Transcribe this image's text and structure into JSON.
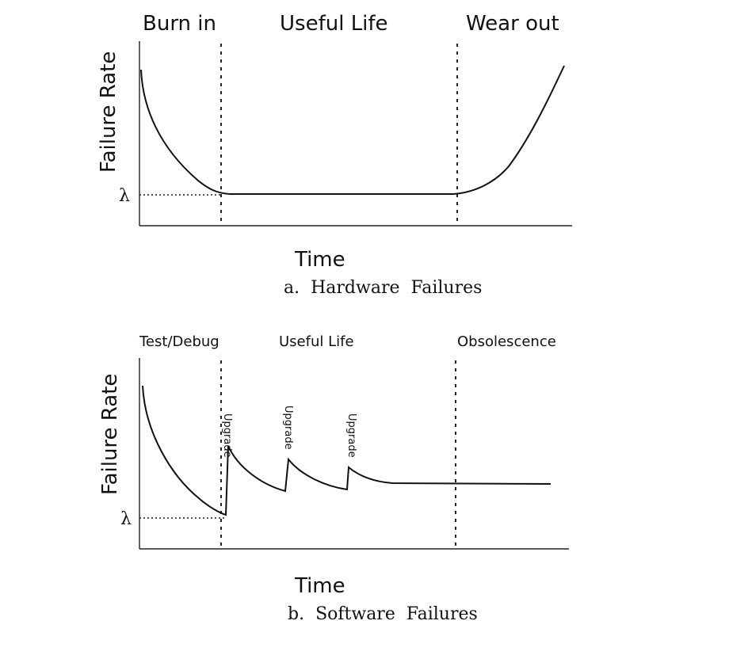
{
  "hardware": {
    "phases": [
      "Burn in",
      "Useful Life",
      "Wear out"
    ],
    "ylabel": "Failure Rate",
    "xlabel": "Time",
    "lambda": "λ",
    "caption": "a.  Hardware  Failures"
  },
  "software": {
    "phases": [
      "Test/Debug",
      "Useful Life",
      "Obsolescence"
    ],
    "ylabel": "Failure Rate",
    "xlabel": "Time",
    "lambda": "λ",
    "upgrade_labels": [
      "Upgrade",
      "Upgrade",
      "Upgrade"
    ],
    "caption": "b.  Software  Failures"
  }
}
